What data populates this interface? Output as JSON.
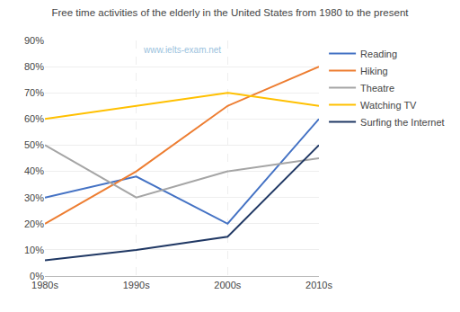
{
  "chart_data": {
    "type": "line",
    "title": "Free time activities of the elderly in the United States from 1980 to the present",
    "annotations": [
      "www.ielts-exam.net"
    ],
    "categories": [
      "1980s",
      "1990s",
      "2000s",
      "2010s"
    ],
    "series": [
      {
        "name": "Reading",
        "color": "#4472c4",
        "values": [
          30,
          38,
          20,
          60
        ]
      },
      {
        "name": "Hiking",
        "color": "#ed7d31",
        "values": [
          20,
          40,
          65,
          80
        ]
      },
      {
        "name": "Theatre",
        "color": "#a5a5a5",
        "values": [
          50,
          30,
          40,
          45
        ]
      },
      {
        "name": "Watching TV",
        "color": "#ffc000",
        "values": [
          60,
          65,
          70,
          65
        ]
      },
      {
        "name": "Surfing the Internet",
        "color": "#203864",
        "values": [
          6,
          10,
          15,
          50
        ]
      }
    ],
    "ylim": [
      0,
      90
    ],
    "yticks": [
      {
        "value": 0,
        "label": "0%"
      },
      {
        "value": 10,
        "label": "10%"
      },
      {
        "value": 20,
        "label": "20%"
      },
      {
        "value": 30,
        "label": "30%"
      },
      {
        "value": 40,
        "label": "40%"
      },
      {
        "value": 50,
        "label": "50%"
      },
      {
        "value": 60,
        "label": "60%"
      },
      {
        "value": 70,
        "label": "70%"
      },
      {
        "value": 80,
        "label": "80%"
      },
      {
        "value": 90,
        "label": "90%"
      }
    ],
    "grid": true,
    "legend": "right"
  }
}
